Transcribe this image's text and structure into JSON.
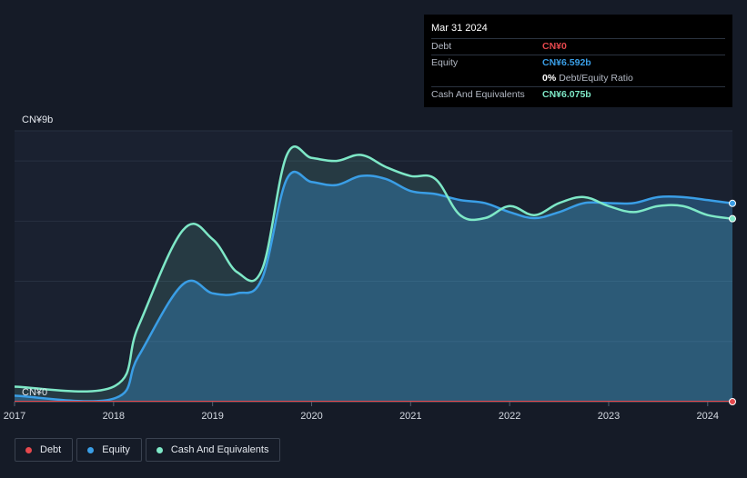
{
  "tooltip": {
    "date": "Mar 31 2024",
    "rows": [
      {
        "label": "Debt",
        "value": "CN¥0",
        "color": "#e5484d"
      },
      {
        "label": "Equity",
        "value": "CN¥6.592b",
        "color": "#3a9ee6"
      },
      {
        "label": "",
        "value": "0%",
        "extra": "Debt/Equity Ratio",
        "color": "#ffffff"
      },
      {
        "label": "Cash And Equivalents",
        "value": "CN¥6.075b",
        "color": "#7ee8c7"
      }
    ]
  },
  "chart_data": {
    "type": "area",
    "y_top_label": "CN¥9b",
    "y_bottom_label": "CN¥0",
    "ylim": [
      0,
      9
    ],
    "xlim": [
      2017.0,
      2024.25
    ],
    "x_tick_labels": [
      "2017",
      "2018",
      "2019",
      "2020",
      "2021",
      "2022",
      "2023",
      "2024"
    ],
    "x_tick_values": [
      2017,
      2018,
      2019,
      2020,
      2021,
      2022,
      2023,
      2024
    ],
    "series": [
      {
        "name": "Debt",
        "color": "#e5484d",
        "x": [
          2017.0,
          2024.25
        ],
        "values": [
          0,
          0
        ]
      },
      {
        "name": "Equity",
        "color": "#3a9ee6",
        "x": [
          2017.0,
          2018.0,
          2018.25,
          2018.7,
          2019.0,
          2019.25,
          2019.5,
          2019.75,
          2020.0,
          2020.25,
          2020.5,
          2020.75,
          2021.0,
          2021.25,
          2021.5,
          2021.75,
          2022.0,
          2022.25,
          2022.5,
          2022.75,
          2023.0,
          2023.25,
          2023.5,
          2023.75,
          2024.0,
          2024.25
        ],
        "values": [
          0.2,
          0.1,
          1.5,
          3.9,
          3.6,
          3.6,
          4.1,
          7.4,
          7.3,
          7.2,
          7.5,
          7.4,
          7.0,
          6.9,
          6.7,
          6.6,
          6.3,
          6.1,
          6.3,
          6.6,
          6.6,
          6.6,
          6.8,
          6.8,
          6.7,
          6.59
        ]
      },
      {
        "name": "Cash And Equivalents",
        "color": "#7ee8c7",
        "x": [
          2017.0,
          2018.0,
          2018.25,
          2018.7,
          2019.0,
          2019.25,
          2019.5,
          2019.75,
          2020.0,
          2020.25,
          2020.5,
          2020.75,
          2021.0,
          2021.25,
          2021.5,
          2021.75,
          2022.0,
          2022.25,
          2022.5,
          2022.75,
          2023.0,
          2023.25,
          2023.5,
          2023.75,
          2024.0,
          2024.25
        ],
        "values": [
          0.5,
          0.5,
          2.5,
          5.7,
          5.4,
          4.3,
          4.4,
          8.2,
          8.1,
          8.0,
          8.2,
          7.8,
          7.5,
          7.4,
          6.2,
          6.1,
          6.5,
          6.2,
          6.6,
          6.8,
          6.5,
          6.3,
          6.5,
          6.5,
          6.2,
          6.08
        ]
      }
    ],
    "legend_placement": "bottom-left",
    "grid": true
  },
  "legend": {
    "items": [
      {
        "label": "Debt",
        "color": "#e5484d"
      },
      {
        "label": "Equity",
        "color": "#3a9ee6"
      },
      {
        "label": "Cash And Equivalents",
        "color": "#7ee8c7"
      }
    ]
  }
}
